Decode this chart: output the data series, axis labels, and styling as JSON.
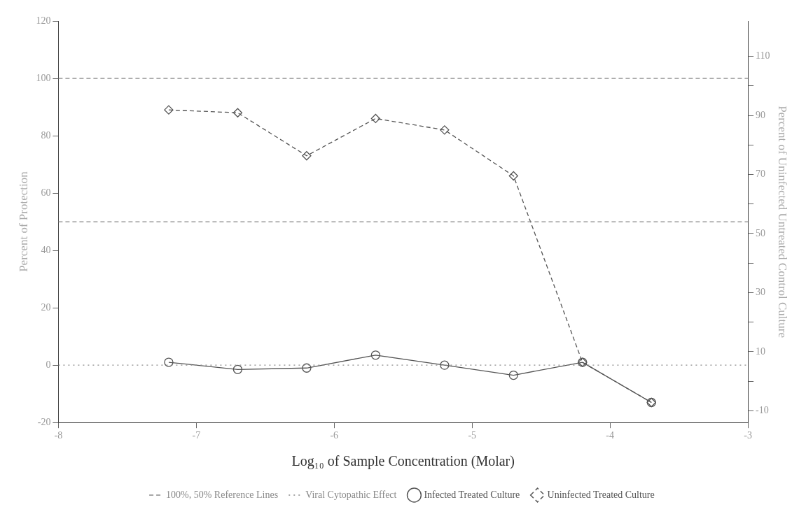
{
  "chart_data": {
    "type": "line",
    "xlabel": "Log₁₀ of Sample Concentration (Molar)",
    "ylabel": "Percent of Protection",
    "y2label": "Percent of Uninfected Untreated Control Culture",
    "xlim": [
      -8,
      -3
    ],
    "xticks": [
      -8,
      -7,
      -6,
      -5,
      -4,
      -3
    ],
    "ylim": [
      -20,
      120
    ],
    "yticks": [
      -20,
      0,
      20,
      40,
      60,
      80,
      100,
      120
    ],
    "y2lim": [
      -14,
      122
    ],
    "y2ticks": [
      -10,
      {
        "value": 0,
        "label": null
      },
      10,
      {
        "value": 20,
        "label": null
      },
      30,
      {
        "value": 40,
        "label": null
      },
      50,
      {
        "value": 60,
        "label": null
      },
      70,
      {
        "value": 80,
        "label": null
      },
      90,
      {
        "value": 100,
        "label": null
      },
      110
    ],
    "grid": false,
    "legend": "bottom",
    "ref_lines": [
      {
        "axis": "y",
        "value": 50,
        "color": "#8a8a8a",
        "line_style": "dashed"
      }
    ],
    "series": [
      {
        "name": "100%, 50% Reference Lines",
        "type": "line",
        "color": "#8a8a8a",
        "line_style": "dashed",
        "marker": "none",
        "x": [
          -8,
          -3
        ],
        "values": [
          100,
          100
        ]
      },
      {
        "name": "Viral Cytopathic Effect",
        "type": "line",
        "color": "#8a8a8a",
        "line_style": "dotted",
        "marker": "none",
        "x": [
          -8,
          -3
        ],
        "values": [
          0,
          0
        ]
      },
      {
        "name": "Infected Treated Culture",
        "type": "line",
        "color": "#555555",
        "line_style": "solid",
        "marker": "circle",
        "x": [
          -7.2,
          -6.7,
          -6.2,
          -5.7,
          -5.2,
          -4.7,
          -4.2,
          -3.7
        ],
        "values": [
          1,
          -1.5,
          -1,
          3.5,
          0,
          -3.5,
          1,
          -13
        ]
      },
      {
        "name": "Uninfected Treated Culture",
        "type": "line",
        "color": "#555555",
        "line_style": "dashed",
        "marker": "diamond",
        "x": [
          -7.2,
          -6.7,
          -6.2,
          -5.7,
          -5.2,
          -4.7,
          -4.2,
          -3.7
        ],
        "values": [
          89,
          88,
          73,
          86,
          82,
          66,
          1,
          -13
        ]
      }
    ]
  }
}
